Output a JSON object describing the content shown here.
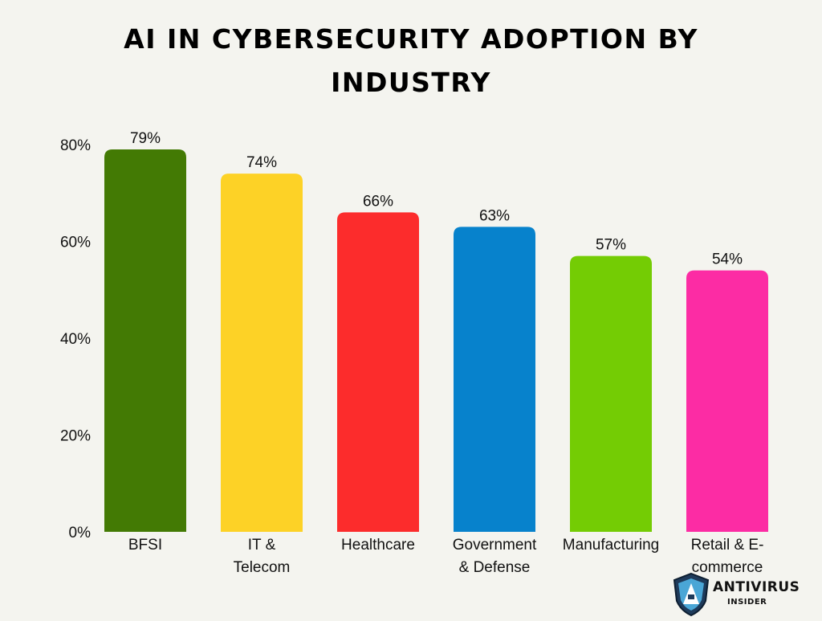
{
  "logo": {
    "brand": "ANTIVIRUS",
    "sub": "INSIDER"
  },
  "chart_data": {
    "type": "bar",
    "title": "AI IN CYBERSECURITY ADOPTION BY INDUSTRY",
    "categories": [
      [
        "BFSI"
      ],
      [
        "IT &",
        "Telecom"
      ],
      [
        "Healthcare"
      ],
      [
        "Government",
        "& Defense"
      ],
      [
        "Manufacturing"
      ],
      [
        "Retail & E-",
        "commerce"
      ]
    ],
    "values": [
      79,
      74,
      66,
      63,
      57,
      54
    ],
    "data_labels": [
      "79%",
      "74%",
      "66%",
      "63%",
      "57%",
      "54%"
    ],
    "colors": [
      "#437a04",
      "#fdd226",
      "#fc2c2c",
      "#0782cc",
      "#74cc04",
      "#fc2ca4"
    ],
    "y_ticks": [
      "0%",
      "20%",
      "40%",
      "60%",
      "80%"
    ],
    "y_tick_values": [
      0,
      20,
      40,
      60,
      80
    ],
    "ylim": [
      0,
      80
    ],
    "grid": false,
    "legend": "none"
  }
}
